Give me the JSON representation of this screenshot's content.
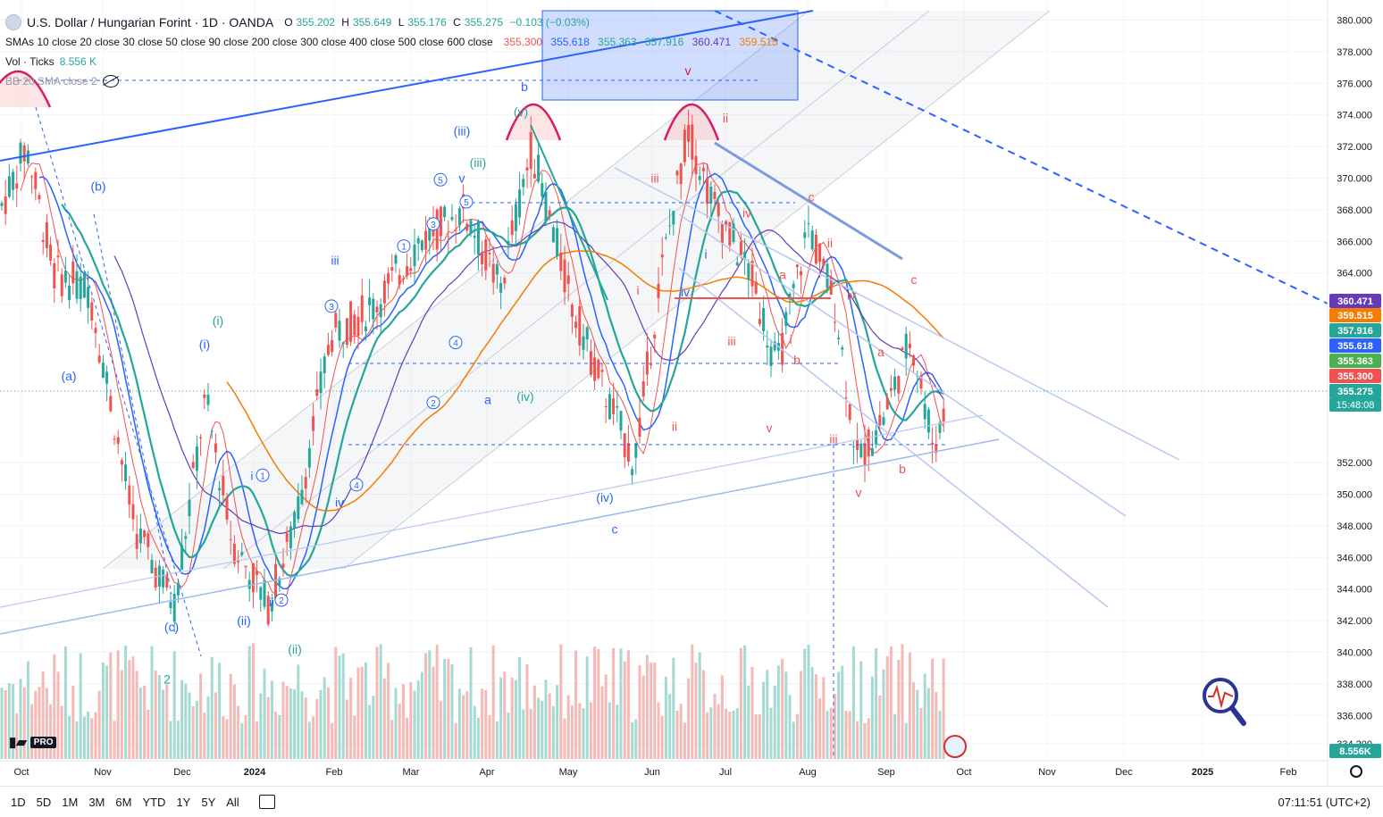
{
  "header": {
    "symbol_title": "U.S. Dollar / Hungarian Forint · 1D · OANDA",
    "ohlc": {
      "open_label": "O",
      "open": "355.202",
      "high_label": "H",
      "high": "355.649",
      "low_label": "L",
      "low": "355.176",
      "close_label": "C",
      "close": "355.275",
      "change": "−0.103 (−0.03%)"
    },
    "sma_label": "SMAs 10 close 20 close 30 close 50 close 90 close 200 close 300 close 400 close 500 close 600 close",
    "sma_values": [
      "355.300",
      "355.618",
      "355.363",
      "357.916",
      "360.471",
      "359.515"
    ],
    "vol_label": "Vol · Ticks",
    "vol_value": "8.556 K",
    "bb_label": "BB 20 SMA close 2"
  },
  "colors": {
    "up": "#26a69a",
    "down": "#ef5350",
    "trend": "#2962ff",
    "fib": "#90a4c8",
    "sma10": "#ef5350",
    "sma20": "#2962ff",
    "sma50": "#26a69a",
    "sma200": "#f57c00",
    "sma90": "#673ab7"
  },
  "chart_data": {
    "type": "candlestick",
    "y_axis_ticks": [
      "380.000",
      "378.000",
      "376.000",
      "374.000",
      "372.000",
      "370.000",
      "368.000",
      "366.000",
      "364.000",
      "362.000",
      "352.000",
      "350.000",
      "348.000",
      "346.000",
      "344.000",
      "342.000",
      "340.000",
      "338.000",
      "336.000",
      "334.200"
    ],
    "ylim": [
      333.5,
      381
    ],
    "x_axis_ticks": [
      "Oct",
      "Nov",
      "Dec",
      "2024",
      "Feb",
      "Mar",
      "Apr",
      "May",
      "Jun",
      "Jul",
      "Aug",
      "Sep",
      "Oct",
      "Nov",
      "Dec",
      "2025",
      "Feb"
    ],
    "price_badges": [
      {
        "value": "360.471",
        "color": "#673ab7"
      },
      {
        "value": "359.515",
        "color": "#f57c00"
      },
      {
        "value": "357.916",
        "color": "#26a69a"
      },
      {
        "value": "355.618",
        "color": "#2962ff"
      },
      {
        "value": "355.363",
        "color": "#4caf50"
      },
      {
        "value": "355.300",
        "color": "#ef5350"
      },
      {
        "value": "355.275",
        "color": "#26a69a"
      }
    ],
    "countdown": "15:48:08",
    "volume_badge": "8.556K",
    "last_price": 355.275,
    "wave_labels": [
      {
        "text": "(b)",
        "color": "#2962ff",
        "px": 110,
        "price": 369.5
      },
      {
        "text": "(a)",
        "color": "#2962ff",
        "px": 77,
        "price": 357.5
      },
      {
        "text": "(c)",
        "color": "#2962ff",
        "px": 192,
        "price": 341.6
      },
      {
        "text": "2",
        "color": "#26a69a",
        "px": 187,
        "price": 338.3
      },
      {
        "text": "(i)",
        "color": "#26a69a",
        "px": 244,
        "price": 361.0
      },
      {
        "text": "(i)",
        "color": "#2962ff",
        "px": 229,
        "price": 359.5
      },
      {
        "text": "(ii)",
        "color": "#2962ff",
        "px": 273,
        "price": 342.0
      },
      {
        "text": "(ii)",
        "color": "#26a69a",
        "px": 330,
        "price": 340.2
      },
      {
        "text": "iii",
        "color": "#2962ff",
        "px": 375,
        "price": 364.8
      },
      {
        "text": "iv",
        "color": "#2962ff",
        "px": 380,
        "price": 349.5
      },
      {
        "text": "(iii)",
        "color": "#2962ff",
        "px": 517,
        "price": 373.0
      },
      {
        "text": "(iii)",
        "color": "#26a69a",
        "px": 535,
        "price": 371.0
      },
      {
        "text": "(v)",
        "color": "#26a69a",
        "px": 583,
        "price": 374.2
      },
      {
        "text": "v",
        "color": "#2962ff",
        "px": 517,
        "price": 370.0
      },
      {
        "text": "(iv)",
        "color": "#26a69a",
        "px": 588,
        "price": 356.2
      },
      {
        "text": "a",
        "color": "#2962ff",
        "px": 546,
        "price": 356.0
      },
      {
        "text": "(iv)",
        "color": "#2962ff",
        "px": 677,
        "price": 349.8
      },
      {
        "text": "c",
        "color": "#2962ff",
        "px": 688,
        "price": 347.8
      },
      {
        "text": "b",
        "color": "#2962ff",
        "px": 587,
        "price": 375.8
      },
      {
        "text": "v",
        "color": "#c2185b",
        "px": 770,
        "price": 376.8
      },
      {
        "text": "iii",
        "color": "#ef5350",
        "px": 733,
        "price": 370.0
      },
      {
        "text": "ii",
        "color": "#ef5350",
        "px": 812,
        "price": 373.8
      },
      {
        "text": "iv",
        "color": "#ef5350",
        "px": 836,
        "price": 367.8
      },
      {
        "text": "i",
        "color": "#ef5350",
        "px": 714,
        "price": 362.9
      },
      {
        "text": "i",
        "color": "#2962ff",
        "px": 790,
        "price": 365.2
      },
      {
        "text": "iv",
        "color": "#2962ff",
        "px": 767,
        "price": 362.8
      },
      {
        "text": "ii",
        "color": "#ef5350",
        "px": 755,
        "price": 354.3
      },
      {
        "text": "iii",
        "color": "#ef5350",
        "px": 819,
        "price": 359.7
      },
      {
        "text": "v",
        "color": "#ef5350",
        "px": 861,
        "price": 354.2
      },
      {
        "text": "a",
        "color": "#ef5350",
        "px": 876,
        "price": 363.9
      },
      {
        "text": "b",
        "color": "#ef5350",
        "px": 892,
        "price": 358.5
      },
      {
        "text": "i",
        "color": "#ef5350",
        "px": 885,
        "price": 359.8
      },
      {
        "text": "c",
        "color": "#ef5350",
        "px": 908,
        "price": 368.8
      },
      {
        "text": "ii",
        "color": "#ef5350",
        "px": 929,
        "price": 365.9
      },
      {
        "text": "iv",
        "color": "#ef5350",
        "px": 953,
        "price": 362.6
      },
      {
        "text": "a",
        "color": "#ef5350",
        "px": 986,
        "price": 359.0
      },
      {
        "text": "iii",
        "color": "#ef5350",
        "px": 933,
        "price": 353.5
      },
      {
        "text": "b",
        "color": "#ef5350",
        "px": 1010,
        "price": 351.6
      },
      {
        "text": "v",
        "color": "#ef5350",
        "px": 961,
        "price": 350.1
      },
      {
        "text": "c",
        "color": "#ef5350",
        "px": 1023,
        "price": 363.6
      }
    ],
    "circled_labels": [
      {
        "text": "1",
        "px": 452,
        "price": 365.7
      },
      {
        "text": "2",
        "px": 485,
        "price": 355.8
      },
      {
        "text": "3",
        "px": 371,
        "price": 361.9
      },
      {
        "text": "3",
        "px": 485,
        "price": 367.1
      },
      {
        "text": "4",
        "px": 510,
        "price": 359.6
      },
      {
        "text": "4",
        "px": 399,
        "price": 350.6
      },
      {
        "text": "5",
        "px": 493,
        "price": 369.9
      },
      {
        "text": "5",
        "px": 522,
        "price": 368.5
      },
      {
        "text": "1",
        "px": 294,
        "price": 351.2
      },
      {
        "text": "2",
        "px": 315,
        "price": 343.3
      }
    ],
    "plain_labels": [
      {
        "text": "i",
        "color": "#2962ff",
        "px": 282,
        "price": 351.2
      },
      {
        "text": "ii",
        "color": "#2962ff",
        "px": 304,
        "price": 343.2
      }
    ]
  }
}
